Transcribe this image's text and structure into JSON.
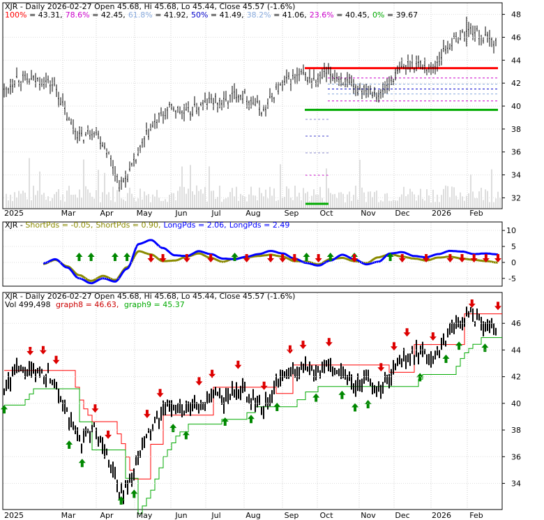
{
  "chart_data": [
    {
      "type": "line",
      "panel": "price-fibonacci",
      "symbol": "XJR",
      "header_text": "XJR - Daily 2026-02-27 Open 45.68, Hi 45.68, Lo 45.44, Close 45.57 (-1.6%)",
      "fib_levels": [
        {
          "label": "100%",
          "value": "43.31",
          "color": "#ff0000"
        },
        {
          "label": "78.6%",
          "value": "42.45",
          "color": "#cc00cc"
        },
        {
          "label": "61.8%",
          "value": "41.92",
          "color": "#88aadd"
        },
        {
          "label": "50%",
          "value": "41.49",
          "color": "#0000cc"
        },
        {
          "label": "38.2%",
          "value": "41.06",
          "color": "#88aadd"
        },
        {
          "label": "23.6%",
          "value": "40.45",
          "color": "#cc00cc"
        },
        {
          "label": "0%",
          "value": "39.67",
          "color": "#00aa00"
        }
      ],
      "fib_numbers": [
        43.31,
        42.45,
        41.92,
        41.49,
        41.06,
        40.45,
        39.67
      ],
      "y_ticks": [
        "48",
        "46",
        "44",
        "42",
        "40",
        "38",
        "36",
        "34",
        "32"
      ],
      "ylim": [
        31.6,
        48.4
      ],
      "x_labels": [
        "2025",
        "Mar",
        "Apr",
        "May",
        "Jun",
        "Jul",
        "Aug",
        "Sep",
        "Oct",
        "Nov",
        "Dec",
        "2026",
        "Feb"
      ],
      "months": [
        "2025-01",
        "2025-02",
        "2025-03",
        "2025-04",
        "2025-05",
        "2025-06",
        "2025-07",
        "2025-08",
        "2025-09",
        "2025-10",
        "2025-11",
        "2025-12",
        "2026-01",
        "2026-02"
      ],
      "close_series": [
        41.2,
        42.5,
        42.2,
        42.3,
        41.7,
        38.7,
        37.2,
        38.0,
        36.1,
        33.0,
        34.8,
        37.4,
        39.0,
        39.9,
        39.3,
        39.9,
        40.5,
        40.3,
        41.2,
        40.6,
        39.5,
        41.4,
        42.3,
        42.7,
        42.1,
        42.9,
        42.4,
        41.4,
        41.7,
        40.9,
        42.5,
        43.6,
        43.7,
        43.2,
        45.0,
        46.0,
        46.7,
        45.9,
        45.6
      ],
      "volume_color": "#dddddd",
      "colors": {
        "candle": "#000000",
        "grid": "#bbbbbb",
        "fib_high": "#ff0000",
        "fib_low": "#00aa00"
      }
    },
    {
      "type": "line",
      "panel": "short-long-pds",
      "header": {
        "prefix": "XJR - ",
        "items": [
          {
            "text": "ShortPds = -0.05,",
            "color": "#8B8B00"
          },
          {
            "text": "ShortPds = 0.90,",
            "color": "#8B8B00"
          },
          {
            "text": "LongPds = 2.06,",
            "color": "#0000ff"
          },
          {
            "text": "LongPds = 2.49",
            "color": "#0000ff"
          }
        ]
      },
      "y_ticks": [
        "10",
        "5",
        "0",
        "-5"
      ],
      "ylim": [
        -7,
        12
      ],
      "short_series": [
        -0.5,
        0.8,
        -1.2,
        -4.0,
        -5.8,
        -4.2,
        -5.5,
        -1.5,
        3.5,
        2.5,
        0.4,
        0.6,
        1.8,
        2.8,
        1.4,
        0.2,
        1.2,
        1.6,
        2.0,
        2.4,
        1.8,
        0.4,
        0.2,
        -0.6,
        1.0,
        1.4,
        0.4,
        -0.2,
        1.6,
        2.6,
        1.8,
        1.2,
        0.6,
        1.5,
        1.8,
        1.2,
        0.8,
        0.4,
        -0.05
      ],
      "long_series": [
        -0.3,
        1.0,
        -1.6,
        -5.0,
        -6.5,
        -5.0,
        -6.0,
        -2.0,
        5.8,
        7.0,
        4.5,
        2.2,
        2.0,
        3.5,
        2.6,
        1.2,
        1.0,
        1.8,
        2.6,
        3.6,
        2.8,
        1.2,
        -0.2,
        -1.0,
        0.6,
        2.4,
        1.0,
        -0.6,
        0.2,
        2.8,
        3.2,
        2.0,
        1.6,
        2.6,
        3.6,
        3.4,
        2.6,
        2.8,
        2.49
      ],
      "buy_arrows_at": [
        3,
        4,
        6,
        7,
        16,
        22,
        24,
        26,
        29
      ],
      "sell_arrows_at": [
        9,
        10,
        12,
        14,
        17,
        19,
        20,
        21,
        23,
        26,
        30,
        32,
        34,
        35,
        36,
        37,
        38
      ],
      "colors": {
        "short": "#8B8B00",
        "long": "#0000ff"
      }
    },
    {
      "type": "line",
      "panel": "price-stops",
      "header_text": "XJR - Daily 2026-02-27 Open 45.68, Hi 45.68, Lo 45.44, Close 45.57 (-1.6%)",
      "legend": {
        "vol": "Vol 499,498",
        "graph8": "graph8 = 46.63,",
        "graph9": "graph9 = 45.37"
      },
      "y_ticks": [
        "46",
        "44",
        "42",
        "40",
        "38",
        "36",
        "34"
      ],
      "ylim": [
        32.3,
        48.0
      ],
      "x_labels": [
        "2025",
        "Mar",
        "Apr",
        "May",
        "Jun",
        "Jul",
        "Aug",
        "Sep",
        "Oct",
        "Nov",
        "Dec",
        "2026",
        "Feb"
      ],
      "buy_arrows_at": [
        0,
        5,
        6,
        9,
        10,
        13,
        14,
        17,
        19,
        21,
        24,
        26,
        27,
        28,
        32,
        34,
        35,
        37
      ],
      "sell_arrows_at": [
        2,
        3,
        4,
        7,
        8,
        11,
        12,
        15,
        16,
        18,
        20,
        22,
        23,
        25,
        29,
        30,
        31,
        33,
        36,
        38
      ],
      "colors": {
        "graph8": "#ff0000",
        "graph9": "#00aa00",
        "price": "#000000"
      }
    }
  ]
}
